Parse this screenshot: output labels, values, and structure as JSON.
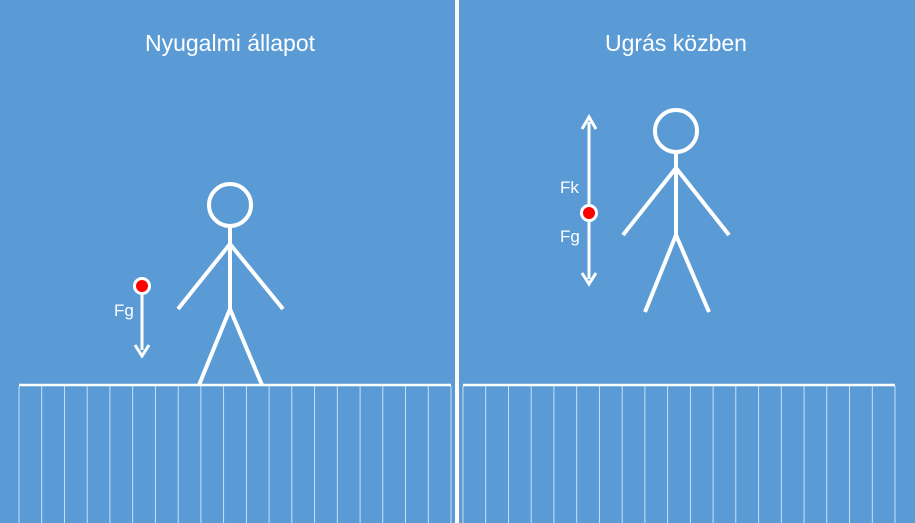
{
  "panels": [
    {
      "title": "Nyugalmi állapot",
      "forces": [
        {
          "label": "Fg",
          "direction": "down"
        }
      ]
    },
    {
      "title": "Ugrás közben",
      "forces": [
        {
          "label": "Fk",
          "direction": "up"
        },
        {
          "label": "Fg",
          "direction": "down"
        }
      ]
    }
  ],
  "colors": {
    "background": "#5b9bd5",
    "line": "#ffffff",
    "point": "#ff0000"
  }
}
